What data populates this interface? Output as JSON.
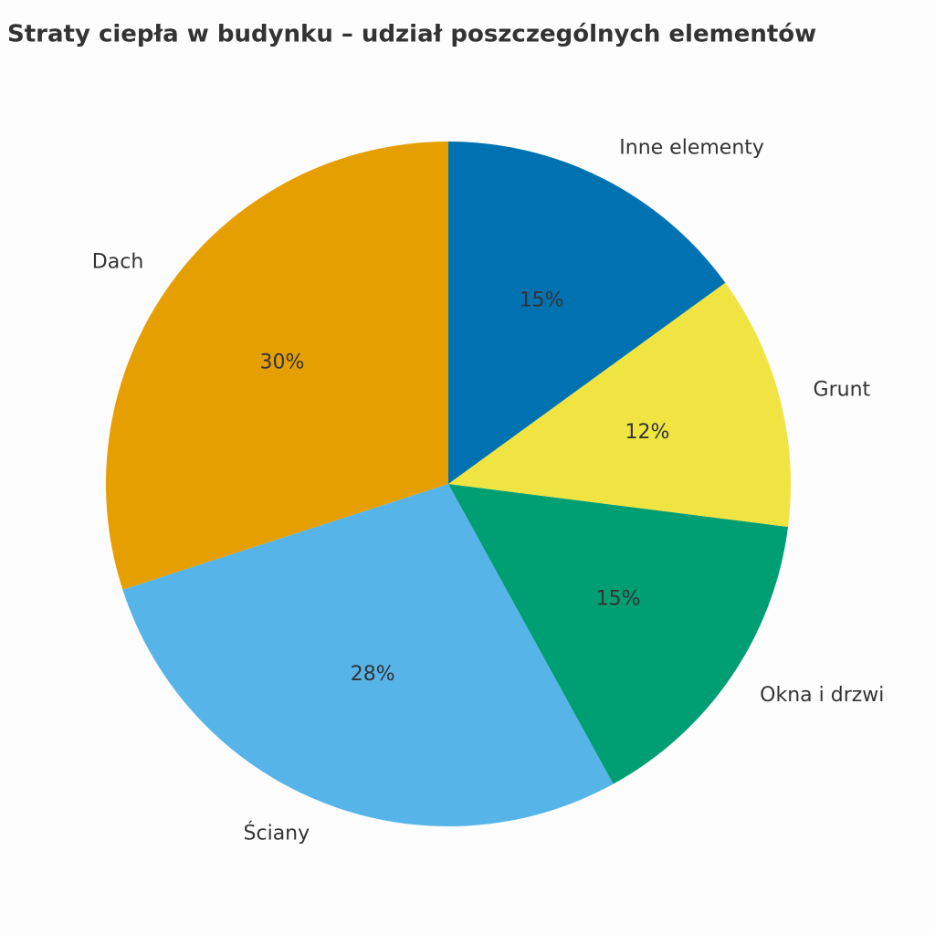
{
  "chart_data": {
    "type": "pie",
    "title": "Straty ciepła w budynku – udział poszczególnych elementów",
    "categories": [
      "Dach",
      "Ściany",
      "Okna i drzwi",
      "Grunt",
      "Inne elementy"
    ],
    "values": [
      30,
      28,
      15,
      12,
      15
    ],
    "value_labels": [
      "30%",
      "28%",
      "15%",
      "12%",
      "15%"
    ],
    "colors": [
      "#E69F00",
      "#56B4E9",
      "#009E73",
      "#F0E442",
      "#0072B2"
    ]
  }
}
